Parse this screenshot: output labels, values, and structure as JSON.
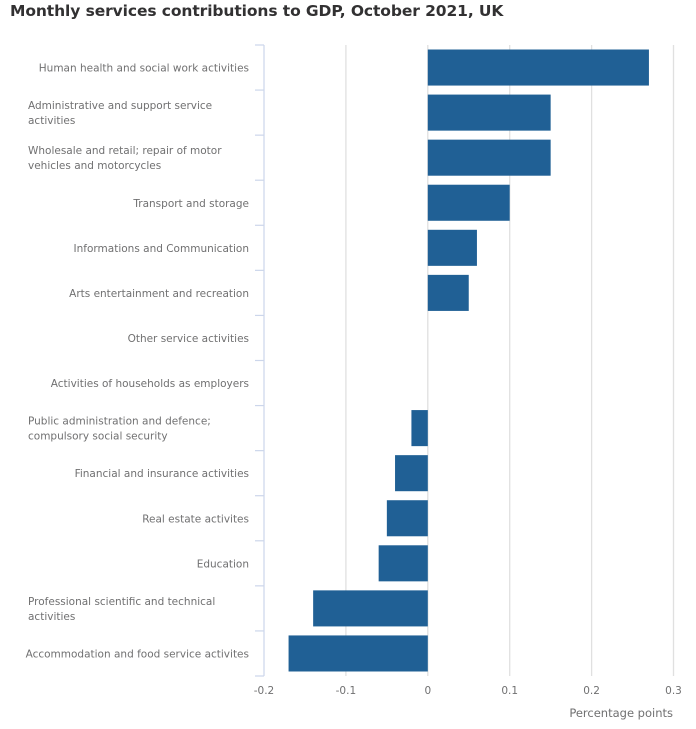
{
  "chart_data": {
    "type": "bar",
    "orientation": "horizontal",
    "title": "Monthly services contributions to GDP, October 2021, UK",
    "xlabel": "Percentage points",
    "ylabel": "",
    "xlim": [
      -0.2,
      0.3
    ],
    "xticks": [
      -0.2,
      -0.1,
      0,
      0.1,
      0.2,
      0.3
    ],
    "xtick_labels": [
      "-0.2",
      "-0.1",
      "0",
      "0.1",
      "0.2",
      "0.3"
    ],
    "grid": "vertical",
    "bar_color": "#206095",
    "categories": [
      [
        "Human health and social work activities"
      ],
      [
        "Administrative and support service",
        "activities"
      ],
      [
        "Wholesale and retail; repair of motor",
        "vehicles and motorcycles"
      ],
      [
        "Transport and storage"
      ],
      [
        "Informations and Communication"
      ],
      [
        "Arts entertainment and recreation"
      ],
      [
        "Other service activities"
      ],
      [
        "Activities of households as employers"
      ],
      [
        "Public administration and defence;",
        "compulsory social security"
      ],
      [
        "Financial and insurance activities"
      ],
      [
        "Real estate activites"
      ],
      [
        "Education"
      ],
      [
        "Professional scientific and technical",
        "activities"
      ],
      [
        "Accommodation and food service activites"
      ]
    ],
    "values": [
      0.27,
      0.15,
      0.15,
      0.1,
      0.06,
      0.05,
      0,
      0,
      -0.02,
      -0.04,
      -0.05,
      -0.06,
      -0.14,
      -0.17
    ]
  }
}
